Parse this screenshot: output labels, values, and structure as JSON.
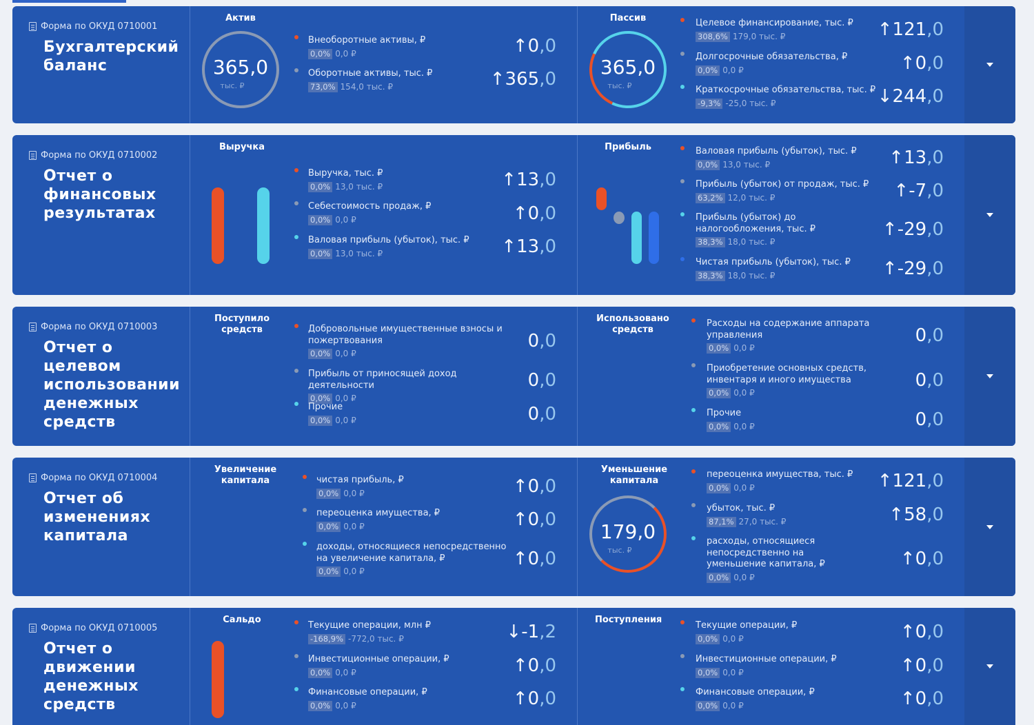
{
  "colors": {
    "card_bg": "#2356b0",
    "orange": "#e95127",
    "cyan": "#56d3ea",
    "grey": "#8a9ab5",
    "blue": "#2f6ee8"
  },
  "cards": [
    {
      "form": "Форма по ОКУД 0710001",
      "title": "Бухгалтерский баланс",
      "left": {
        "head": "Актив",
        "ring": {
          "value": "365,0",
          "unit": "тыс. ₽"
        },
        "items": [
          {
            "label": "Внеоборотные активы, ₽",
            "pct": "0,0%",
            "sub": "0,0 ₽",
            "arrow": "↑",
            "int": "0",
            "frac": ",0",
            "dot": "orange"
          },
          {
            "label": "Оборотные активы, тыс. ₽",
            "pct": "73,0%",
            "sub": "154,0 тыс. ₽",
            "arrow": "↑",
            "int": "365",
            "frac": ",0",
            "dot": "grey"
          }
        ]
      },
      "right": {
        "head": "Пассив",
        "ring": {
          "value": "365,0",
          "unit": "тыс. ₽"
        },
        "items": [
          {
            "label": "Целевое финансирование, тыс. ₽",
            "pct": "308,6%",
            "sub": "179,0 тыс. ₽",
            "arrow": "↑",
            "int": "121",
            "frac": ",0",
            "dot": "orange"
          },
          {
            "label": "Долгосрочные обязательства, ₽",
            "pct": "0,0%",
            "sub": "0,0 ₽",
            "arrow": "↑",
            "int": "0",
            "frac": ",0",
            "dot": "grey"
          },
          {
            "label": "Краткосрочные обязательства, тыс. ₽",
            "pct": "-9,3%",
            "sub": "-25,0 тыс. ₽",
            "arrow": "↓",
            "int": "244",
            "frac": ",0",
            "dot": "cyan"
          }
        ]
      }
    },
    {
      "form": "Форма по ОКУД 0710002",
      "title": "Отчет о финансовых результатах",
      "left": {
        "head": "Выручка",
        "items": [
          {
            "label": "Выручка, тыс. ₽",
            "pct": "0,0%",
            "sub": "13,0 тыс. ₽",
            "arrow": "↑",
            "int": "13",
            "frac": ",0",
            "dot": "orange"
          },
          {
            "label": "Себестоимость продаж, ₽",
            "pct": "0,0%",
            "sub": "0,0 ₽",
            "arrow": "↑",
            "int": "0",
            "frac": ",0",
            "dot": "grey"
          },
          {
            "label": "Валовая прибыль (убыток), тыс. ₽",
            "pct": "0,0%",
            "sub": "13,0 тыс. ₽",
            "arrow": "↑",
            "int": "13",
            "frac": ",0",
            "dot": "cyan"
          }
        ]
      },
      "right": {
        "head": "Прибыль",
        "items": [
          {
            "label": "Валовая прибыль (убыток), тыс. ₽",
            "pct": "0,0%",
            "sub": "13,0 тыс. ₽",
            "arrow": "↑",
            "int": "13",
            "frac": ",0",
            "dot": "orange"
          },
          {
            "label": "Прибыль (убыток) от продаж, тыс. ₽",
            "pct": "63,2%",
            "sub": "12,0 тыс. ₽",
            "arrow": "↑",
            "int": "-7",
            "frac": ",0",
            "dot": "grey"
          },
          {
            "label": "Прибыль (убыток) до налогообложения, тыс. ₽",
            "pct": "38,3%",
            "sub": "18,0 тыс. ₽",
            "arrow": "↑",
            "int": "-29",
            "frac": ",0",
            "dot": "cyan"
          },
          {
            "label": "Чистая прибыль (убыток), тыс. ₽",
            "pct": "38,3%",
            "sub": "18,0 тыс. ₽",
            "arrow": "↑",
            "int": "-29",
            "frac": ",0",
            "dot": "blue"
          }
        ]
      }
    },
    {
      "form": "Форма по ОКУД 0710003",
      "title": "Отчет о целевом использовании денежных средств",
      "left": {
        "head": "Поступило средств",
        "items": [
          {
            "label": "Добровольные имущественные взносы и пожертвования",
            "pct": "0,0%",
            "sub": "0,0 ₽",
            "arrow": "",
            "int": "0",
            "frac": ",0",
            "dot": "orange"
          },
          {
            "label": "Прибыль от приносящей доход деятельности",
            "pct": "0,0%",
            "sub": "0,0 ₽",
            "arrow": "",
            "int": "0",
            "frac": ",0",
            "dot": "grey"
          },
          {
            "label": "Прочие",
            "pct": "0,0%",
            "sub": "0,0 ₽",
            "arrow": "",
            "int": "0",
            "frac": ",0",
            "dot": "cyan"
          }
        ]
      },
      "right": {
        "head": "Использовано средств",
        "items": [
          {
            "label": "Расходы на содержание аппарата управления",
            "pct": "0,0%",
            "sub": "0,0 ₽",
            "arrow": "",
            "int": "0",
            "frac": ",0",
            "dot": "orange"
          },
          {
            "label": "Приобретение основных средств, инвентаря и иного имущества",
            "pct": "0,0%",
            "sub": "0,0 ₽",
            "arrow": "",
            "int": "0",
            "frac": ",0",
            "dot": "grey"
          },
          {
            "label": "Прочие",
            "pct": "0,0%",
            "sub": "0,0 ₽",
            "arrow": "",
            "int": "0",
            "frac": ",0",
            "dot": "cyan"
          }
        ]
      }
    },
    {
      "form": "Форма по ОКУД 0710004",
      "title": "Отчет об изменениях капитала",
      "left": {
        "head": "Увеличение капитала",
        "items": [
          {
            "label": "чистая прибыль, ₽",
            "pct": "0,0%",
            "sub": "0,0 ₽",
            "arrow": "↑",
            "int": "0",
            "frac": ",0",
            "dot": "orange"
          },
          {
            "label": "переоценка имущества, ₽",
            "pct": "0,0%",
            "sub": "0,0 ₽",
            "arrow": "↑",
            "int": "0",
            "frac": ",0",
            "dot": "grey"
          },
          {
            "label": "доходы, относящиеся непосредственно на увеличение капитала, ₽",
            "pct": "0,0%",
            "sub": "0,0 ₽",
            "arrow": "↑",
            "int": "0",
            "frac": ",0",
            "dot": "cyan"
          }
        ]
      },
      "right": {
        "head": "Уменьшение капитала",
        "ring": {
          "value": "179,0",
          "unit": "тыс. ₽"
        },
        "items": [
          {
            "label": "переоценка имущества, тыс. ₽",
            "pct": "0,0%",
            "sub": "0,0 ₽",
            "arrow": "↑",
            "int": "121",
            "frac": ",0",
            "dot": "orange"
          },
          {
            "label": "убыток, тыс. ₽",
            "pct": "87,1%",
            "sub": "27,0 тыс. ₽",
            "arrow": "↑",
            "int": "58",
            "frac": ",0",
            "dot": "grey"
          },
          {
            "label": "расходы, относящиеся непосредственно на уменьшение капитала, ₽",
            "pct": "0,0%",
            "sub": "0,0 ₽",
            "arrow": "↑",
            "int": "0",
            "frac": ",0",
            "dot": "cyan"
          }
        ]
      }
    },
    {
      "form": "Форма по ОКУД 0710005",
      "title": "Отчет о движении денежных средств",
      "left": {
        "head": "Сальдо",
        "items": [
          {
            "label": "Текущие операции, млн ₽",
            "pct": "-168,9%",
            "sub": "-772,0 тыс. ₽",
            "arrow": "↓",
            "int": "-1",
            "frac": ",2",
            "dot": "orange"
          },
          {
            "label": "Инвестиционные операции, ₽",
            "pct": "0,0%",
            "sub": "0,0 ₽",
            "arrow": "↑",
            "int": "0",
            "frac": ",0",
            "dot": "grey"
          },
          {
            "label": "Финансовые операции, ₽",
            "pct": "0,0%",
            "sub": "0,0 ₽",
            "arrow": "↑",
            "int": "0",
            "frac": ",0",
            "dot": "cyan"
          }
        ]
      },
      "right": {
        "head": "Поступления",
        "items": [
          {
            "label": "Текущие операции, ₽",
            "pct": "0,0%",
            "sub": "0,0 ₽",
            "arrow": "↑",
            "int": "0",
            "frac": ",0",
            "dot": "orange"
          },
          {
            "label": "Инвестиционные операции, ₽",
            "pct": "0,0%",
            "sub": "0,0 ₽",
            "arrow": "↑",
            "int": "0",
            "frac": ",0",
            "dot": "grey"
          },
          {
            "label": "Финансовые операции, ₽",
            "pct": "0,0%",
            "sub": "0,0 ₽",
            "arrow": "↑",
            "int": "0",
            "frac": ",0",
            "dot": "cyan"
          }
        ]
      }
    }
  ]
}
